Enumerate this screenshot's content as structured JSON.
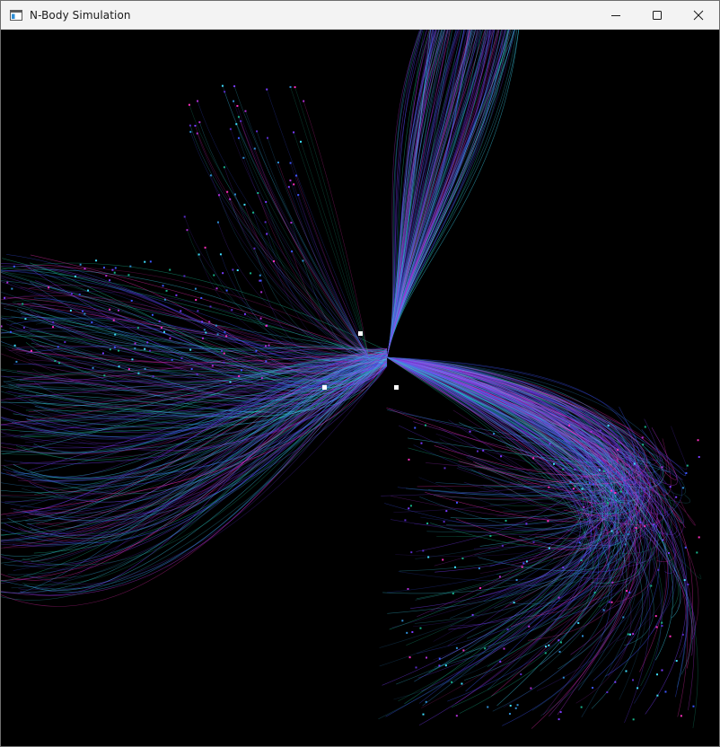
{
  "window": {
    "title": "N-Body Simulation",
    "icon": "app-window-icon",
    "controls": [
      "minimize-icon",
      "maximize-icon",
      "close-icon"
    ]
  },
  "simulation": {
    "background": "#000000",
    "trail_colors": [
      "#7b3cff",
      "#3d57ff",
      "#2f8fd6",
      "#18b38a",
      "#b02fd6",
      "#ff2fbf",
      "#3fe0ff",
      "#5a2cc9"
    ],
    "body_color": "#ffffff"
  }
}
